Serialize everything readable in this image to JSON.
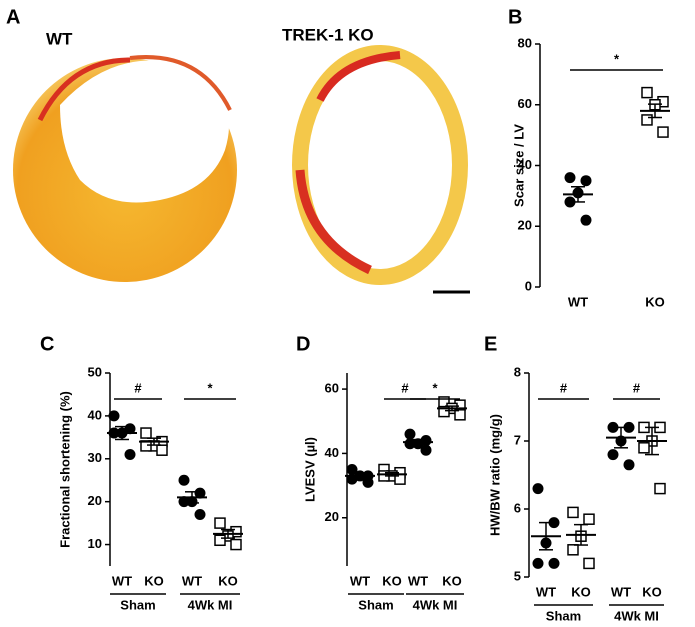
{
  "panel_a": {
    "label": "A",
    "titles": [
      "WT",
      "TREK-1 KO"
    ]
  },
  "chart_data": [
    {
      "type": "dot",
      "label": "B",
      "ylabel": "Scar size / LV",
      "ylim": [
        0,
        80
      ],
      "yticks": [
        0,
        20,
        40,
        60,
        80
      ],
      "categories": [
        "WT",
        "KO"
      ],
      "markers": [
        "filled",
        "open"
      ],
      "color": "#000000",
      "points": [
        [
          36,
          35,
          31,
          28,
          22
        ],
        [
          64,
          61,
          60,
          55,
          51
        ]
      ],
      "means": [
        30.5,
        58
      ],
      "sems": [
        2.5,
        2.2
      ],
      "annotations": [
        {
          "text": "*",
          "from": 0,
          "to": 1
        }
      ]
    },
    {
      "type": "dot",
      "label": "C",
      "ylabel": "Fractional shortening (%)",
      "ylim": [
        5,
        50
      ],
      "yticks": [
        10,
        20,
        30,
        40,
        50
      ],
      "categories": [
        "WT",
        "KO",
        "WT",
        "KO"
      ],
      "group_labels": [
        "Sham",
        "4Wk MI"
      ],
      "markers": [
        "filled",
        "open",
        "filled",
        "open"
      ],
      "color": "#000000",
      "points": [
        [
          40,
          37,
          36,
          36,
          31
        ],
        [
          36,
          34,
          33,
          33,
          32
        ],
        [
          25,
          22,
          20,
          20,
          17
        ],
        [
          15,
          13,
          12,
          11,
          10
        ]
      ],
      "means": [
        36,
        34,
        21,
        12.5
      ],
      "sems": [
        1.5,
        0.8,
        1.3,
        1.0
      ],
      "annotations": [
        {
          "text": "#",
          "from": 0,
          "to": 1
        },
        {
          "text": "*",
          "from": 2,
          "to": 3
        }
      ]
    },
    {
      "type": "dot",
      "label": "D",
      "ylabel": "LVESV (µl)",
      "ylim": [
        5,
        65
      ],
      "yticks": [
        20,
        40,
        60
      ],
      "categories": [
        "WT",
        "KO",
        "WT",
        "KO"
      ],
      "group_labels": [
        "Sham",
        "4Wk MI"
      ],
      "markers": [
        "filled",
        "open",
        "filled",
        "open"
      ],
      "color": "#000000",
      "points": [
        [
          35,
          33,
          33,
          32,
          31
        ],
        [
          35,
          34,
          33,
          33,
          32
        ],
        [
          46,
          44,
          43,
          43,
          41
        ],
        [
          56,
          55,
          54,
          53,
          52
        ]
      ],
      "means": [
        33,
        33.5,
        43.5,
        54
      ],
      "sems": [
        0.8,
        0.5,
        0.8,
        0.7
      ],
      "annotations": [
        {
          "text": "#",
          "from": 1,
          "to": 2
        },
        {
          "text": "*",
          "from": 2,
          "to": 3
        }
      ]
    },
    {
      "type": "dot",
      "label": "E",
      "ylabel": "HW/BW ratio (mg/g)",
      "ylim": [
        5,
        8
      ],
      "yticks": [
        5,
        6,
        7,
        8
      ],
      "categories": [
        "WT",
        "KO",
        "WT",
        "KO"
      ],
      "group_labels": [
        "Sham",
        "4Wk MI"
      ],
      "markers": [
        "filled",
        "open",
        "filled",
        "open"
      ],
      "color": "#000000",
      "points": [
        [
          6.3,
          5.8,
          5.5,
          5.2,
          5.2
        ],
        [
          5.95,
          5.85,
          5.6,
          5.4,
          5.2
        ],
        [
          7.2,
          7.2,
          7.0,
          6.8,
          6.65
        ],
        [
          7.2,
          7.2,
          7.0,
          6.9,
          6.3
        ]
      ],
      "means": [
        5.6,
        5.62,
        7.05,
        7.0
      ],
      "sems": [
        0.2,
        0.15,
        0.15,
        0.2
      ],
      "annotations": [
        {
          "text": "#",
          "from": 0,
          "to": 1
        },
        {
          "text": "#",
          "from": 2,
          "to": 3
        }
      ]
    }
  ]
}
